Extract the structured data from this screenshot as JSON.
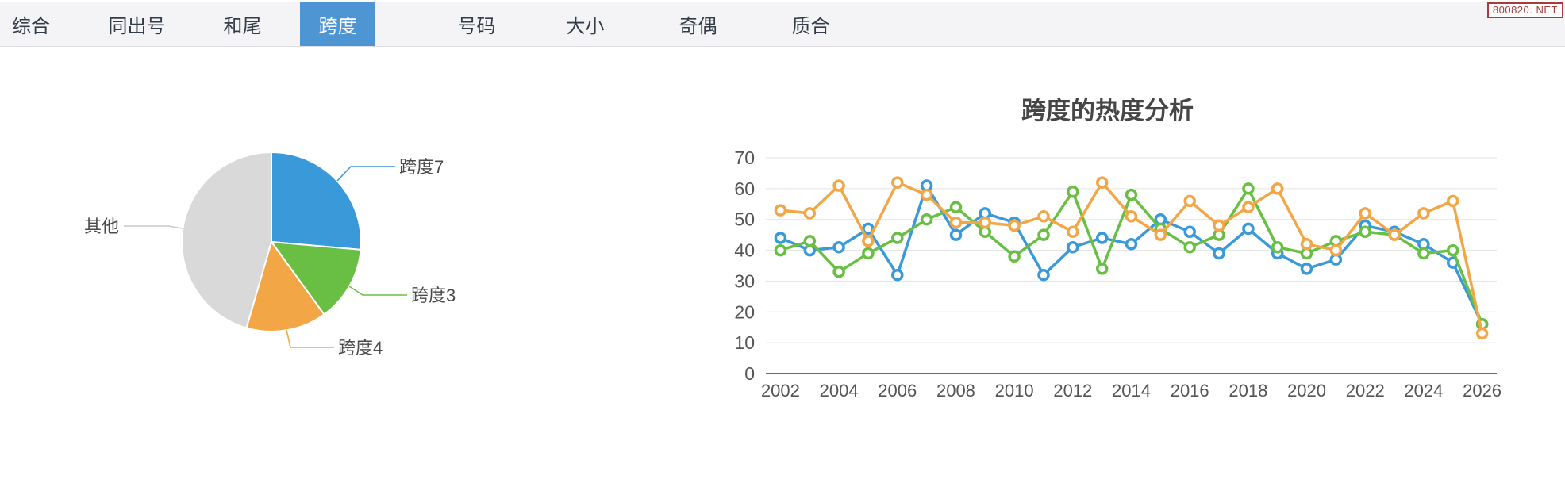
{
  "nav": {
    "tabs": [
      {
        "label": "综合",
        "active": false
      },
      {
        "label": "同出号",
        "active": false
      },
      {
        "label": "和尾",
        "active": false
      },
      {
        "label": "跨度",
        "active": true
      },
      {
        "label": "号码",
        "active": false
      },
      {
        "label": "大小",
        "active": false
      },
      {
        "label": "奇偶",
        "active": false
      },
      {
        "label": "质合",
        "active": false
      }
    ],
    "active_bg": "#4e96d3",
    "bar_bg": "#f4f4f6"
  },
  "watermark": {
    "text": "800820. NET",
    "color": "#a93b3b"
  },
  "chart_data": [
    {
      "type": "pie",
      "title": "",
      "labels": [
        "跨度7",
        "跨度3",
        "跨度4",
        "其他"
      ],
      "values_pct": [
        26.4,
        13.6,
        14.5,
        45.5
      ],
      "colors": [
        "#3a99d9",
        "#69bf43",
        "#f2a645",
        "#d9d9d9"
      ],
      "start_angle_deg": 0,
      "clockwise": true,
      "label_color": "#4a4a4a"
    },
    {
      "type": "line",
      "title": "跨度的热度分析",
      "categories": [
        2002,
        2003,
        2004,
        2005,
        2006,
        2007,
        2008,
        2009,
        2010,
        2011,
        2012,
        2013,
        2014,
        2015,
        2016,
        2017,
        2018,
        2019,
        2020,
        2021,
        2022,
        2023,
        2024,
        2025,
        2026
      ],
      "xtick_labels": [
        "2002",
        "2004",
        "2006",
        "2008",
        "2010",
        "2012",
        "2014",
        "2016",
        "2018",
        "2020",
        "2022",
        "2024",
        "2026"
      ],
      "ytick_labels": [
        "0",
        "10",
        "20",
        "30",
        "40",
        "50",
        "60",
        "70"
      ],
      "ylim": [
        0,
        70
      ],
      "grid": true,
      "legend": "none",
      "series": [
        {
          "name": "跨度7",
          "color": "#3a99d9",
          "values": [
            44,
            40,
            41,
            47,
            32,
            61,
            45,
            52,
            49,
            32,
            41,
            44,
            42,
            50,
            46,
            39,
            47,
            39,
            34,
            37,
            48,
            46,
            42,
            36,
            16
          ]
        },
        {
          "name": "跨度3",
          "color": "#69bf43",
          "values": [
            40,
            43,
            33,
            39,
            44,
            50,
            54,
            46,
            38,
            45,
            59,
            34,
            58,
            47,
            41,
            45,
            60,
            41,
            39,
            43,
            46,
            45,
            39,
            40,
            16
          ]
        },
        {
          "name": "跨度4",
          "color": "#f2a645",
          "values": [
            53,
            52,
            61,
            43,
            62,
            58,
            49,
            49,
            48,
            51,
            46,
            62,
            51,
            45,
            56,
            48,
            54,
            60,
            42,
            40,
            52,
            45,
            52,
            56,
            13
          ]
        }
      ],
      "axis_text_color": "#555555",
      "grid_color": "#e3e3e3",
      "axis_line_color": "#6b6b6b",
      "title_color": "#464646"
    }
  ]
}
